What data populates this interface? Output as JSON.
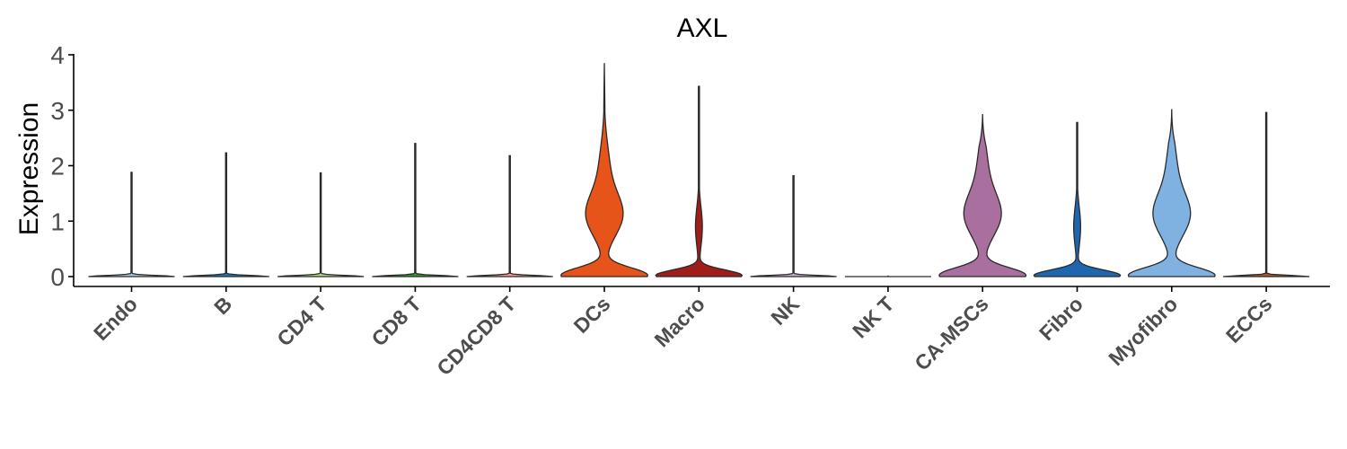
{
  "chart_data": {
    "type": "violin",
    "title": "AXL",
    "xlabel": "",
    "ylabel": "Expression",
    "ylim": [
      0,
      4
    ],
    "yticks": [
      "0",
      "1",
      "2",
      "3",
      "4"
    ],
    "grid": false,
    "legend": "none",
    "categories": [
      "Endo",
      "B",
      "CD4 T",
      "CD8 T",
      "CD4CD8 T",
      "DCs",
      "Macro",
      "NK",
      "NK T",
      "CA-MSCs",
      "Fibro",
      "Myofibro",
      "ECCs"
    ],
    "violins": [
      {
        "name": "Endo",
        "color": "#a6cee3",
        "max": 1.88,
        "shape": "flat"
      },
      {
        "name": "B",
        "color": "#1f78b4",
        "max": 2.23,
        "shape": "flat"
      },
      {
        "name": "CD4 T",
        "color": "#b2df8a",
        "max": 1.87,
        "shape": "flat"
      },
      {
        "name": "CD8 T",
        "color": "#33a02c",
        "max": 2.4,
        "shape": "flat"
      },
      {
        "name": "CD4CD8 T",
        "color": "#fb9a99",
        "max": 2.18,
        "shape": "flat"
      },
      {
        "name": "DCs",
        "color": "#e6541a",
        "max": 3.85,
        "shape": "bimodal"
      },
      {
        "name": "Macro",
        "color": "#a11d1a",
        "max": 3.43,
        "shape": "spike"
      },
      {
        "name": "NK",
        "color": "#cab2d6",
        "max": 1.82,
        "shape": "flat"
      },
      {
        "name": "NK T",
        "color": "#6a3d9a",
        "max": 0.0,
        "shape": "flat"
      },
      {
        "name": "CA-MSCs",
        "color": "#a96f9f",
        "max": 2.93,
        "shape": "bimodal"
      },
      {
        "name": "Fibro",
        "color": "#1f66b0",
        "max": 2.78,
        "shape": "spike"
      },
      {
        "name": "Myofibro",
        "color": "#7fb2e0",
        "max": 3.02,
        "shape": "bimodal"
      },
      {
        "name": "ECCs",
        "color": "#b15928",
        "max": 2.96,
        "shape": "flat"
      }
    ]
  }
}
